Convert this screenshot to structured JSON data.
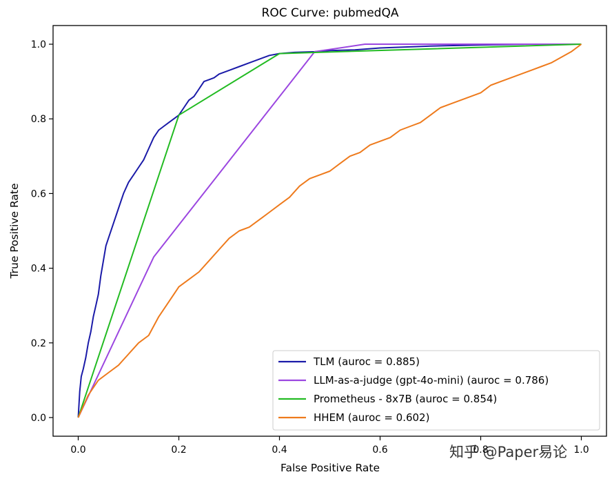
{
  "chart_data": {
    "type": "line",
    "title": "ROC Curve: pubmedQA",
    "xlabel": "False Positive Rate",
    "ylabel": "True Positive Rate",
    "xlim": [
      -0.05,
      1.05
    ],
    "ylim": [
      -0.05,
      1.05
    ],
    "xticks": [
      0.0,
      0.2,
      0.4,
      0.6,
      0.8,
      1.0
    ],
    "yticks": [
      0.0,
      0.2,
      0.4,
      0.6,
      0.8,
      1.0
    ],
    "xtick_labels": [
      "0.0",
      "0.2",
      "0.4",
      "0.6",
      "0.8",
      "1.0"
    ],
    "ytick_labels": [
      "0.0",
      "0.2",
      "0.4",
      "0.6",
      "0.8",
      "1.0"
    ],
    "grid": false,
    "legend_position": "lower-right",
    "series": [
      {
        "name": "TLM (auroc = 0.885)",
        "color": "#1a1aa8",
        "x": [
          0,
          0.003,
          0.006,
          0.01,
          0.015,
          0.02,
          0.025,
          0.03,
          0.035,
          0.04,
          0.045,
          0.05,
          0.055,
          0.06,
          0.07,
          0.08,
          0.09,
          0.1,
          0.11,
          0.12,
          0.13,
          0.14,
          0.15,
          0.16,
          0.17,
          0.18,
          0.19,
          0.2,
          0.21,
          0.22,
          0.23,
          0.24,
          0.25,
          0.26,
          0.27,
          0.28,
          0.3,
          0.32,
          0.34,
          0.36,
          0.38,
          0.4,
          0.43,
          0.47,
          0.5,
          0.55,
          0.6,
          0.7,
          0.8,
          0.9,
          1.0
        ],
        "y": [
          0,
          0.07,
          0.11,
          0.13,
          0.16,
          0.2,
          0.23,
          0.27,
          0.3,
          0.33,
          0.38,
          0.42,
          0.46,
          0.48,
          0.52,
          0.56,
          0.6,
          0.63,
          0.65,
          0.67,
          0.69,
          0.72,
          0.75,
          0.77,
          0.78,
          0.79,
          0.8,
          0.81,
          0.83,
          0.85,
          0.86,
          0.88,
          0.9,
          0.905,
          0.91,
          0.92,
          0.93,
          0.94,
          0.95,
          0.96,
          0.97,
          0.975,
          0.978,
          0.98,
          0.983,
          0.985,
          0.99,
          0.995,
          0.998,
          1.0,
          1.0
        ]
      },
      {
        "name": "LLM-as-a-judge (gpt-4o-mini) (auroc = 0.786)",
        "color": "#9b46e0",
        "x": [
          0,
          0.15,
          0.47,
          0.57,
          1.0
        ],
        "y": [
          0,
          0.43,
          0.98,
          1.0,
          1.0
        ]
      },
      {
        "name": "Prometheus - 8x7B (auroc = 0.854)",
        "color": "#22bb22",
        "x": [
          0,
          0.2,
          0.4,
          1.0
        ],
        "y": [
          0,
          0.81,
          0.975,
          1.0
        ]
      },
      {
        "name": "HHEM (auroc = 0.602)",
        "color": "#ee7a1c",
        "x": [
          0,
          0.01,
          0.02,
          0.04,
          0.06,
          0.08,
          0.1,
          0.12,
          0.14,
          0.16,
          0.18,
          0.2,
          0.22,
          0.24,
          0.26,
          0.28,
          0.3,
          0.32,
          0.34,
          0.36,
          0.38,
          0.4,
          0.42,
          0.44,
          0.46,
          0.48,
          0.5,
          0.52,
          0.54,
          0.56,
          0.58,
          0.6,
          0.62,
          0.64,
          0.66,
          0.68,
          0.7,
          0.72,
          0.74,
          0.76,
          0.78,
          0.8,
          0.82,
          0.84,
          0.86,
          0.88,
          0.9,
          0.92,
          0.94,
          0.96,
          0.98,
          1.0
        ],
        "y": [
          0,
          0.03,
          0.06,
          0.1,
          0.12,
          0.14,
          0.17,
          0.2,
          0.22,
          0.27,
          0.31,
          0.35,
          0.37,
          0.39,
          0.42,
          0.45,
          0.48,
          0.5,
          0.51,
          0.53,
          0.55,
          0.57,
          0.59,
          0.62,
          0.64,
          0.65,
          0.66,
          0.68,
          0.7,
          0.71,
          0.73,
          0.74,
          0.75,
          0.77,
          0.78,
          0.79,
          0.81,
          0.83,
          0.84,
          0.85,
          0.86,
          0.87,
          0.89,
          0.9,
          0.91,
          0.92,
          0.93,
          0.94,
          0.95,
          0.965,
          0.98,
          1.0
        ]
      }
    ]
  },
  "watermark": {
    "text": "知乎 @Paper易论"
  }
}
